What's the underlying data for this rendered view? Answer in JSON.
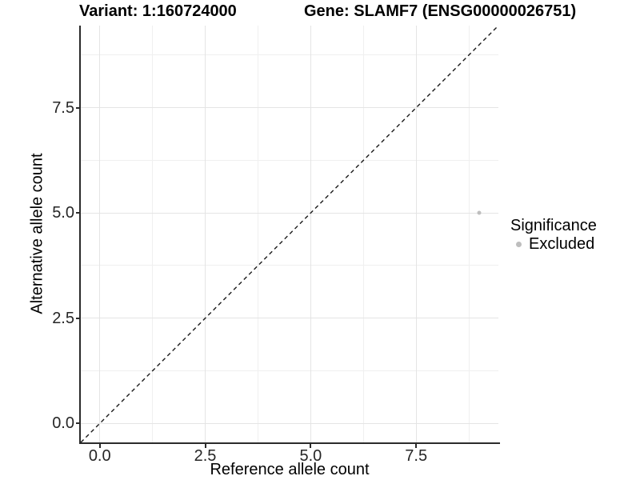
{
  "chart_data": {
    "type": "scatter",
    "titles": {
      "left": "Variant: 1:160724000",
      "right": "Gene: SLAMF7 (ENSG00000026751)"
    },
    "xlabel": "Reference allele count",
    "ylabel": "Alternative allele count",
    "xlim": [
      -0.45,
      9.45
    ],
    "ylim": [
      -0.45,
      9.45
    ],
    "xticks": {
      "values": [
        0,
        2.5,
        5,
        7.5
      ],
      "labels": [
        "0.0",
        "2.5",
        "5.0",
        "7.5"
      ]
    },
    "yticks": {
      "values": [
        0,
        2.5,
        5,
        7.5
      ],
      "labels": [
        "0.0",
        "2.5",
        "5.0",
        "7.5"
      ]
    },
    "x_minor_breaks": [
      1.25,
      3.75,
      6.25,
      8.75
    ],
    "y_minor_breaks": [
      1.25,
      3.75,
      6.25,
      8.75
    ],
    "grid": "major+minor",
    "reference_line": {
      "type": "abline",
      "slope": 1,
      "intercept": 0,
      "linetype": "dashed",
      "color": "#1a1a1a"
    },
    "series": [
      {
        "name": "Excluded",
        "color": "#bebebe",
        "points": [
          {
            "x": 9,
            "y": 5
          }
        ]
      }
    ],
    "legend": {
      "title": "Significance",
      "position": "right",
      "entries": [
        {
          "label": "Excluded",
          "color": "#bebebe"
        }
      ]
    },
    "colors": {
      "background": "#ffffff",
      "grid_major": "#e4e4e4",
      "grid_minor": "#f0f0f0",
      "axis_line": "#2b2b2b",
      "tick_label": "#262626",
      "point": "#bebebe",
      "dashed_line": "#1a1a1a"
    }
  }
}
